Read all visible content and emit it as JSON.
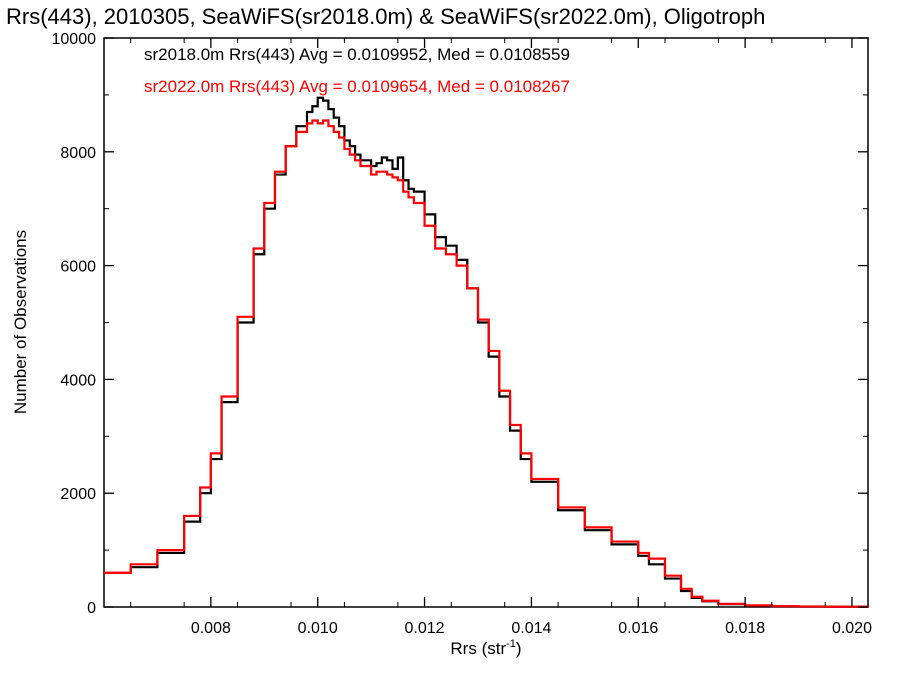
{
  "chart_data": {
    "type": "line",
    "title": "Rrs(443), 2010305, SeaWiFS(sr2018.0m) & SeaWiFS(sr2022.0m), Oligotroph",
    "xlabel": {
      "text": "Rrs (str",
      "superscript": "-1",
      "suffix": ")"
    },
    "ylabel": "Number of Observations",
    "xlim": [
      0.006,
      0.0203
    ],
    "ylim": [
      0,
      10000
    ],
    "x_ticks": [
      {
        "value": 0.008,
        "label": "0.008"
      },
      {
        "value": 0.01,
        "label": "0.010"
      },
      {
        "value": 0.012,
        "label": "0.012"
      },
      {
        "value": 0.014,
        "label": "0.014"
      },
      {
        "value": 0.016,
        "label": "0.016"
      },
      {
        "value": 0.018,
        "label": "0.018"
      },
      {
        "value": 0.02,
        "label": "0.020"
      }
    ],
    "y_ticks": [
      {
        "value": 0,
        "label": "0"
      },
      {
        "value": 2000,
        "label": "2000"
      },
      {
        "value": 4000,
        "label": "4000"
      },
      {
        "value": 6000,
        "label": "6000"
      },
      {
        "value": 8000,
        "label": "8000"
      },
      {
        "value": 10000,
        "label": "10000"
      }
    ],
    "legend": [
      {
        "text": "sr2018.0m Rrs(443) Avg = 0.0109952, Med = 0.0108559",
        "color": "#000000"
      },
      {
        "text": "sr2022.0m Rrs(443) Avg = 0.0109654, Med = 0.0108267",
        "color": "#ff0000"
      }
    ],
    "series": [
      {
        "color": "#000000",
        "x": [
          0.006,
          0.0065,
          0.007,
          0.0075,
          0.0078,
          0.008,
          0.0082,
          0.0085,
          0.0088,
          0.009,
          0.0092,
          0.0094,
          0.0096,
          0.0098,
          0.0099,
          0.01,
          0.0101,
          0.0102,
          0.0103,
          0.0104,
          0.0105,
          0.0106,
          0.0107,
          0.0108,
          0.011,
          0.0111,
          0.0112,
          0.0113,
          0.0114,
          0.0115,
          0.0116,
          0.0117,
          0.0118,
          0.012,
          0.0122,
          0.0124,
          0.0126,
          0.0128,
          0.013,
          0.0132,
          0.0134,
          0.0136,
          0.0138,
          0.014,
          0.0145,
          0.015,
          0.0155,
          0.016,
          0.0162,
          0.0165,
          0.0168,
          0.017,
          0.0172,
          0.0175,
          0.018,
          0.0185,
          0.019,
          0.0195,
          0.0203
        ],
        "y": [
          600,
          700,
          950,
          1500,
          2000,
          2600,
          3600,
          5000,
          6200,
          7000,
          7600,
          8100,
          8450,
          8700,
          8800,
          8950,
          8900,
          8750,
          8600,
          8450,
          8200,
          8100,
          7950,
          7850,
          7750,
          7800,
          7900,
          7850,
          7700,
          7900,
          7500,
          7350,
          7300,
          6900,
          6500,
          6350,
          6100,
          5600,
          5000,
          4400,
          3700,
          3100,
          2600,
          2200,
          1700,
          1350,
          1100,
          900,
          750,
          500,
          280,
          160,
          100,
          50,
          25,
          12,
          8,
          5,
          0
        ]
      },
      {
        "color": "#ff0000",
        "x": [
          0.006,
          0.0065,
          0.007,
          0.0075,
          0.0078,
          0.008,
          0.0082,
          0.0085,
          0.0088,
          0.009,
          0.0092,
          0.0094,
          0.0096,
          0.0098,
          0.0099,
          0.01,
          0.0101,
          0.0102,
          0.0103,
          0.0104,
          0.0105,
          0.0106,
          0.0107,
          0.0108,
          0.011,
          0.0111,
          0.0112,
          0.0113,
          0.0114,
          0.0115,
          0.0116,
          0.0117,
          0.0118,
          0.012,
          0.0122,
          0.0124,
          0.0126,
          0.0128,
          0.013,
          0.0132,
          0.0134,
          0.0136,
          0.0138,
          0.014,
          0.0145,
          0.015,
          0.0155,
          0.016,
          0.0162,
          0.0165,
          0.0168,
          0.017,
          0.0172,
          0.0175,
          0.018,
          0.0185,
          0.019,
          0.0195,
          0.0203
        ],
        "y": [
          600,
          750,
          1000,
          1600,
          2100,
          2700,
          3700,
          5100,
          6300,
          7100,
          7650,
          8100,
          8350,
          8500,
          8550,
          8500,
          8550,
          8450,
          8350,
          8250,
          8050,
          7950,
          7850,
          7750,
          7600,
          7650,
          7650,
          7600,
          7550,
          7500,
          7300,
          7200,
          7100,
          6700,
          6300,
          6200,
          6000,
          5600,
          5050,
          4500,
          3800,
          3200,
          2700,
          2250,
          1750,
          1400,
          1150,
          950,
          850,
          550,
          320,
          180,
          110,
          55,
          28,
          14,
          9,
          5,
          0
        ]
      }
    ]
  }
}
